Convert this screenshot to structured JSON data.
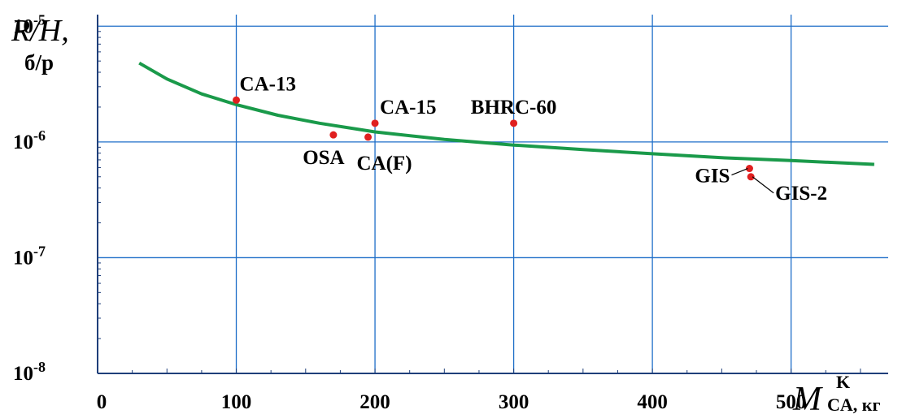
{
  "chart_data": {
    "type": "scatter",
    "title": "",
    "ylabel_main": "R/H,",
    "ylabel_unit": "б/р",
    "xlabel_main": "M",
    "xlabel_sup": "K",
    "xlabel_sub": "CA, кг",
    "x_range": [
      0,
      570
    ],
    "y_range_log10": [
      -8,
      -4.9
    ],
    "y_scale": "log",
    "grid": true,
    "x_ticks": [
      {
        "value": 0,
        "label": "0"
      },
      {
        "value": 100,
        "label": "100"
      },
      {
        "value": 200,
        "label": "200"
      },
      {
        "value": 300,
        "label": "300"
      },
      {
        "value": 400,
        "label": "400"
      },
      {
        "value": 500,
        "label": "500"
      }
    ],
    "y_ticks": [
      {
        "exp": -8,
        "base": "10",
        "sup": "-8"
      },
      {
        "exp": -7,
        "base": "10",
        "sup": "-7"
      },
      {
        "exp": -6,
        "base": "10",
        "sup": "-6"
      },
      {
        "exp": -5,
        "base": "10",
        "sup": "-5"
      }
    ],
    "curve": {
      "color": "#1a9a4a",
      "x": [
        30,
        50,
        75,
        100,
        130,
        160,
        200,
        250,
        300,
        350,
        400,
        450,
        500,
        560
      ],
      "y": [
        4.8e-06,
        3.5e-06,
        2.6e-06,
        2.1e-06,
        1.7e-06,
        1.45e-06,
        1.22e-06,
        1.05e-06,
        9.4e-07,
        8.6e-07,
        7.9e-07,
        7.3e-07,
        6.9e-07,
        6.4e-07
      ]
    },
    "points_color": "#e02020",
    "points": [
      {
        "name": "CA-13",
        "x": 100,
        "y": 2.3e-06
      },
      {
        "name": "OSA",
        "x": 170,
        "y": 1.15e-06
      },
      {
        "name": "CA(F)",
        "x": 195,
        "y": 1.1e-06
      },
      {
        "name": "CA-15",
        "x": 200,
        "y": 1.45e-06
      },
      {
        "name": "BHRC-60",
        "x": 300,
        "y": 1.45e-06
      },
      {
        "name": "GIS",
        "x": 470,
        "y": 5.9e-07
      },
      {
        "name": "GIS-2",
        "x": 471,
        "y": 5e-07
      }
    ],
    "grid_color": "#1e6ec8",
    "axis_color": "#1f3f7a"
  }
}
